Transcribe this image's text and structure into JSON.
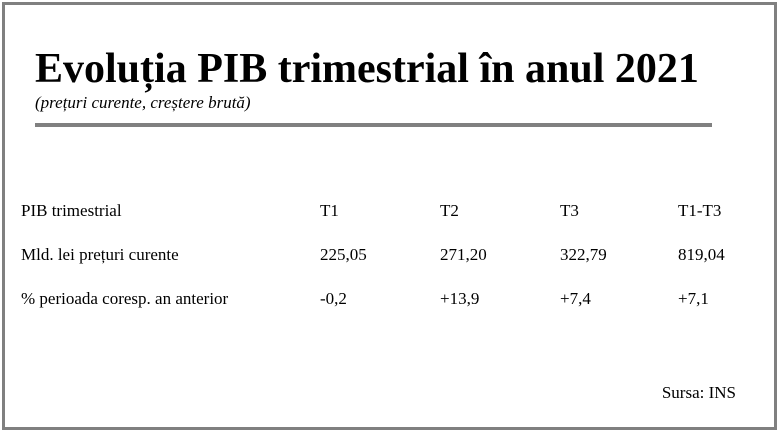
{
  "header": {
    "title": "Evoluția PIB trimestrial în anul 2021",
    "subtitle": "(prețuri curente, creștere brută)"
  },
  "table": {
    "rows": [
      [
        "PIB trimestrial",
        "T1",
        "T2",
        "T3",
        "T1-T3"
      ],
      [
        "Mld. lei prețuri curente",
        "225,05",
        "271,20",
        "322,79",
        "819,04"
      ],
      [
        "% perioada coresp. an anterior",
        "-0,2",
        "+13,9",
        "+7,4",
        "+7,1"
      ]
    ]
  },
  "source": "Sursa: INS"
}
